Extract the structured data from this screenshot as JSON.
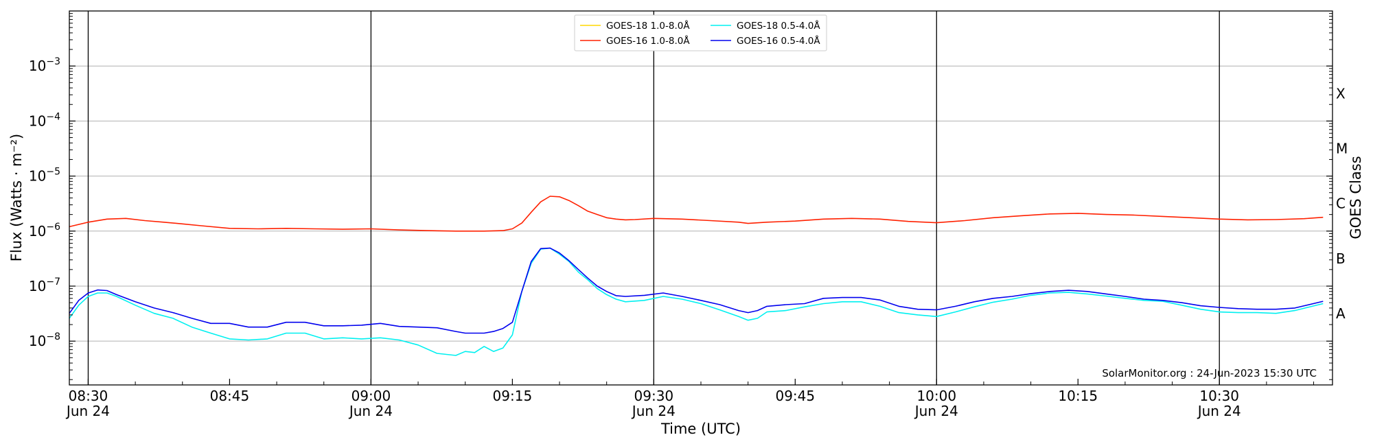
{
  "chart_data": {
    "type": "line",
    "xlabel": "Time (UTC)",
    "ylabel": "Flux (Watts · m⁻²)",
    "right_axis_label": "GOES Class",
    "credit": "SolarMonitor.org : 24-Jun-2023 15:30 UTC",
    "y_scale": "log",
    "ylim": [
      1.6e-09,
      0.01
    ],
    "xlim": [
      "08:28",
      "10:42"
    ],
    "grid": "horizontal and vertical",
    "legend_position": "top-center",
    "x_ticks": [
      {
        "time": "08:30",
        "label": "08:30",
        "sublabel": "Jun 24",
        "major": true
      },
      {
        "time": "08:45",
        "label": "08:45",
        "sublabel": "",
        "major": false
      },
      {
        "time": "09:00",
        "label": "09:00",
        "sublabel": "Jun 24",
        "major": true
      },
      {
        "time": "09:15",
        "label": "09:15",
        "sublabel": "",
        "major": false
      },
      {
        "time": "09:30",
        "label": "09:30",
        "sublabel": "Jun 24",
        "major": true
      },
      {
        "time": "09:45",
        "label": "09:45",
        "sublabel": "",
        "major": false
      },
      {
        "time": "10:00",
        "label": "10:00",
        "sublabel": "Jun 24",
        "major": true
      },
      {
        "time": "10:15",
        "label": "10:15",
        "sublabel": "",
        "major": false
      },
      {
        "time": "10:30",
        "label": "10:30",
        "sublabel": "Jun 24",
        "major": true
      }
    ],
    "y_ticks": [
      {
        "value": 1e-08,
        "base": "10",
        "exp": "−8"
      },
      {
        "value": 1e-07,
        "base": "10",
        "exp": "−7"
      },
      {
        "value": 1e-06,
        "base": "10",
        "exp": "−6"
      },
      {
        "value": 1e-05,
        "base": "10",
        "exp": "−5"
      },
      {
        "value": 0.0001,
        "base": "10",
        "exp": "−4"
      },
      {
        "value": 0.001,
        "base": "10",
        "exp": "−3"
      }
    ],
    "classes": [
      {
        "label": "A",
        "value": 3.16e-08
      },
      {
        "label": "B",
        "value": 3.16e-07
      },
      {
        "label": "C",
        "value": 3.16e-06
      },
      {
        "label": "M",
        "value": 3.16e-05
      },
      {
        "label": "X",
        "value": 0.000316
      }
    ],
    "series": [
      {
        "name": "GOES-18 1.0-8.0Å",
        "color": "#ffd700",
        "legend_column": 0,
        "x": [],
        "values": []
      },
      {
        "name": "GOES-16 1.0-8.0Å",
        "color": "#ff2000",
        "legend_column": 0,
        "x": [
          "08:28",
          "08:30",
          "08:32",
          "08:34",
          "08:36",
          "08:38",
          "08:40",
          "08:42",
          "08:45",
          "08:48",
          "08:51",
          "08:54",
          "08:57",
          "09:00",
          "09:03",
          "09:06",
          "09:09",
          "09:12",
          "09:14",
          "09:15",
          "09:16",
          "09:17",
          "09:18",
          "09:19",
          "09:20",
          "09:21",
          "09:22",
          "09:23",
          "09:24",
          "09:25",
          "09:26",
          "09:27",
          "09:28",
          "09:30",
          "09:33",
          "09:36",
          "09:39",
          "09:40",
          "09:42",
          "09:45",
          "09:48",
          "09:51",
          "09:54",
          "09:57",
          "10:00",
          "10:03",
          "10:06",
          "10:09",
          "10:12",
          "10:15",
          "10:18",
          "10:21",
          "10:24",
          "10:27",
          "10:30",
          "10:33",
          "10:36",
          "10:39",
          "10:41"
        ],
        "values": [
          1.2e-06,
          1.45e-06,
          1.65e-06,
          1.7e-06,
          1.55e-06,
          1.45e-06,
          1.35e-06,
          1.25e-06,
          1.12e-06,
          1.1e-06,
          1.12e-06,
          1.1e-06,
          1.08e-06,
          1.1e-06,
          1.05e-06,
          1.02e-06,
          1e-06,
          1e-06,
          1.02e-06,
          1.1e-06,
          1.4e-06,
          2.2e-06,
          3.4e-06,
          4.3e-06,
          4.2e-06,
          3.6e-06,
          2.9e-06,
          2.3e-06,
          2e-06,
          1.75e-06,
          1.65e-06,
          1.6e-06,
          1.62e-06,
          1.7e-06,
          1.65e-06,
          1.55e-06,
          1.45e-06,
          1.38e-06,
          1.45e-06,
          1.52e-06,
          1.65e-06,
          1.7e-06,
          1.65e-06,
          1.5e-06,
          1.42e-06,
          1.55e-06,
          1.75e-06,
          1.9e-06,
          2.05e-06,
          2.1e-06,
          2e-06,
          1.95e-06,
          1.85e-06,
          1.75e-06,
          1.65e-06,
          1.6e-06,
          1.62e-06,
          1.68e-06,
          1.78e-06
        ]
      },
      {
        "name": "GOES-18 0.5-4.0Å",
        "color": "#00f0f0",
        "legend_column": 1,
        "x": [
          "08:28",
          "08:29",
          "08:30",
          "08:31",
          "08:32",
          "08:33",
          "08:35",
          "08:37",
          "08:39",
          "08:41",
          "08:43",
          "08:45",
          "08:47",
          "08:49",
          "08:51",
          "08:53",
          "08:55",
          "08:57",
          "08:59",
          "09:01",
          "09:03",
          "09:05",
          "09:07",
          "09:09",
          "09:10",
          "09:11",
          "09:12",
          "09:13",
          "09:14",
          "09:15",
          "09:16",
          "09:17",
          "09:18",
          "09:19",
          "09:20",
          "09:21",
          "09:22",
          "09:23",
          "09:24",
          "09:25",
          "09:26",
          "09:27",
          "09:29",
          "09:31",
          "09:33",
          "09:35",
          "09:37",
          "09:39",
          "09:40",
          "09:41",
          "09:42",
          "09:44",
          "09:46",
          "09:48",
          "09:50",
          "09:52",
          "09:54",
          "09:56",
          "09:58",
          "10:00",
          "10:02",
          "10:04",
          "10:06",
          "10:08",
          "10:10",
          "10:12",
          "10:14",
          "10:16",
          "10:18",
          "10:20",
          "10:22",
          "10:24",
          "10:26",
          "10:28",
          "10:30",
          "10:32",
          "10:34",
          "10:36",
          "10:38",
          "10:41"
        ],
        "values": [
          2.6e-08,
          4.5e-08,
          6.5e-08,
          7.5e-08,
          7.5e-08,
          6.5e-08,
          4.5e-08,
          3.2e-08,
          2.6e-08,
          1.8e-08,
          1.4e-08,
          1.1e-08,
          1.05e-08,
          1.1e-08,
          1.4e-08,
          1.4e-08,
          1.1e-08,
          1.15e-08,
          1.1e-08,
          1.15e-08,
          1.05e-08,
          8.5e-09,
          6e-09,
          5.5e-09,
          6.5e-09,
          6.2e-09,
          8e-09,
          6.5e-09,
          7.5e-09,
          1.3e-08,
          8e-08,
          2.6e-07,
          4.7e-07,
          4.9e-07,
          3.8e-07,
          2.8e-07,
          1.8e-07,
          1.3e-07,
          9e-08,
          7e-08,
          5.8e-08,
          5.2e-08,
          5.5e-08,
          6.5e-08,
          5.8e-08,
          4.8e-08,
          3.7e-08,
          2.8e-08,
          2.4e-08,
          2.6e-08,
          3.4e-08,
          3.6e-08,
          4.2e-08,
          4.8e-08,
          5.2e-08,
          5.2e-08,
          4.3e-08,
          3.3e-08,
          3e-08,
          2.8e-08,
          3.4e-08,
          4.2e-08,
          5.1e-08,
          5.8e-08,
          6.8e-08,
          7.5e-08,
          7.7e-08,
          7.2e-08,
          6.6e-08,
          6e-08,
          5.5e-08,
          5.3e-08,
          4.5e-08,
          3.8e-08,
          3.4e-08,
          3.3e-08,
          3.3e-08,
          3.2e-08,
          3.6e-08,
          4.8e-08
        ]
      },
      {
        "name": "GOES-16 0.5-4.0Å",
        "color": "#0000ee",
        "legend_column": 1,
        "x": [
          "08:28",
          "08:29",
          "08:30",
          "08:31",
          "08:32",
          "08:33",
          "08:35",
          "08:37",
          "08:39",
          "08:41",
          "08:43",
          "08:45",
          "08:47",
          "08:49",
          "08:51",
          "08:53",
          "08:55",
          "08:57",
          "08:59",
          "09:01",
          "09:03",
          "09:05",
          "09:07",
          "09:09",
          "09:10",
          "09:11",
          "09:12",
          "09:13",
          "09:14",
          "09:15",
          "09:16",
          "09:17",
          "09:18",
          "09:19",
          "09:20",
          "09:21",
          "09:22",
          "09:23",
          "09:24",
          "09:25",
          "09:26",
          "09:27",
          "09:29",
          "09:31",
          "09:33",
          "09:35",
          "09:37",
          "09:39",
          "09:40",
          "09:41",
          "09:42",
          "09:44",
          "09:46",
          "09:48",
          "09:50",
          "09:52",
          "09:54",
          "09:56",
          "09:58",
          "10:00",
          "10:02",
          "10:04",
          "10:06",
          "10:08",
          "10:10",
          "10:12",
          "10:14",
          "10:16",
          "10:18",
          "10:20",
          "10:22",
          "10:24",
          "10:26",
          "10:28",
          "10:30",
          "10:32",
          "10:34",
          "10:36",
          "10:38",
          "10:41"
        ],
        "values": [
          3.2e-08,
          5.5e-08,
          7.5e-08,
          8.5e-08,
          8.3e-08,
          7e-08,
          5.2e-08,
          4e-08,
          3.3e-08,
          2.6e-08,
          2.1e-08,
          2.1e-08,
          1.8e-08,
          1.8e-08,
          2.2e-08,
          2.2e-08,
          1.9e-08,
          1.9e-08,
          1.95e-08,
          2.1e-08,
          1.85e-08,
          1.8e-08,
          1.75e-08,
          1.5e-08,
          1.4e-08,
          1.4e-08,
          1.4e-08,
          1.5e-08,
          1.7e-08,
          2.2e-08,
          8e-08,
          2.8e-07,
          4.8e-07,
          4.9e-07,
          4e-07,
          2.9e-07,
          2e-07,
          1.4e-07,
          1e-07,
          8e-08,
          6.7e-08,
          6.5e-08,
          6.8e-08,
          7.5e-08,
          6.5e-08,
          5.5e-08,
          4.6e-08,
          3.6e-08,
          3.3e-08,
          3.6e-08,
          4.3e-08,
          4.6e-08,
          4.8e-08,
          6e-08,
          6.2e-08,
          6.2e-08,
          5.6e-08,
          4.3e-08,
          3.8e-08,
          3.7e-08,
          4.3e-08,
          5.2e-08,
          6e-08,
          6.5e-08,
          7.3e-08,
          8e-08,
          8.4e-08,
          8e-08,
          7.2e-08,
          6.5e-08,
          5.8e-08,
          5.5e-08,
          5e-08,
          4.4e-08,
          4.1e-08,
          3.9e-08,
          3.8e-08,
          3.8e-08,
          4e-08,
          5.3e-08
        ]
      }
    ]
  }
}
